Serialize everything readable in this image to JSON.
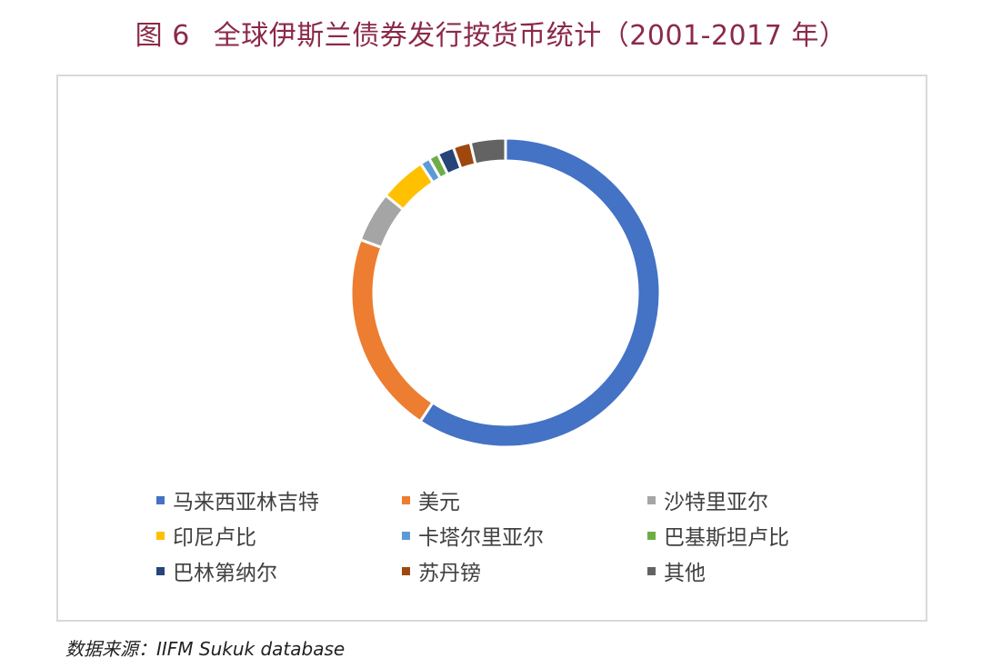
{
  "title_prefix": "图 6",
  "title": "全球伊斯兰债券发行按货币统计（2001-2017 年）",
  "source": "数据来源：IIFM Sukuk database",
  "chart_data": {
    "type": "pie",
    "donut": true,
    "title": "全球伊斯兰债券发行按货币统计（2001-2017 年）",
    "legend_position": "bottom",
    "slices": [
      {
        "label": "马来西亚林吉特",
        "value": 58.3,
        "color": "#4472c4"
      },
      {
        "label": "美元",
        "value": 20.9,
        "color": "#ed7d31"
      },
      {
        "label": "沙特里亚尔",
        "value": 5.2,
        "color": "#a5a5a5"
      },
      {
        "label": "印尼卢比",
        "value": 4.8,
        "color": "#ffc000"
      },
      {
        "label": "卡塔尔里亚尔",
        "value": 1.0,
        "color": "#5b9bd5"
      },
      {
        "label": "巴基斯坦卢比",
        "value": 1.0,
        "color": "#70ad47"
      },
      {
        "label": "巴林第纳尔",
        "value": 1.7,
        "color": "#264478"
      },
      {
        "label": "苏丹镑",
        "value": 1.8,
        "color": "#9e480e"
      },
      {
        "label": "其他",
        "value": 3.6,
        "color": "#636363"
      }
    ]
  }
}
